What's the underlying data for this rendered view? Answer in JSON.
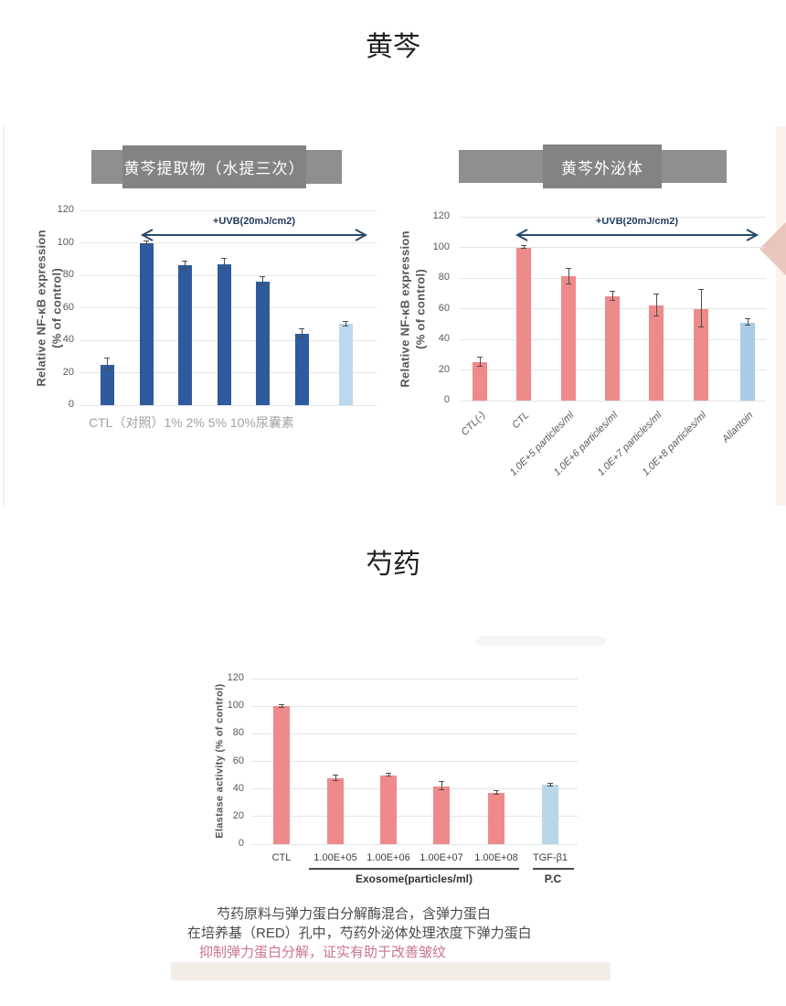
{
  "page": {
    "section1_title": "黄芩",
    "section2_title": "芍药"
  },
  "section1": {
    "left_header": "黄芩提取物（水提三次）",
    "right_header": "黄芩外泌体"
  },
  "section2": {
    "note_line1": "芍药原料与弹力蛋白分解酶混合，含弹力蛋白",
    "note_line2": "在培养基（RED）孔中，芍药外泌体处理浓度下弹力蛋白",
    "note_line3": "抑制弹力蛋白分解，证实有助于改善皱纹"
  },
  "colors": {
    "dark_blue": "#2e5b9e",
    "light_blue": "#bdd7ee",
    "pink": "#ef8a8a",
    "allantoin_blue": "#a9cbe6",
    "tgf_blue": "#b9d6ea",
    "arrow_navy": "#2b4a6d",
    "header_gray": "#838383",
    "note_pink": "#ca7590",
    "edge_strip_pink": "#fbf1ee",
    "edge_diamond": "#e7c6bb"
  },
  "chart_data": [
    {
      "id": "chart-extract",
      "type": "bar",
      "title": "黄芩提取物（水提三次）",
      "ylabel": "Relative NF-κB expression\n(% of control)",
      "ylim": [
        0,
        120
      ],
      "ystep": 20,
      "grid": true,
      "annotation": "+UVB(20mJ/cm2)",
      "caption": "CTL（对照）1% 2% 5% 10%尿囊素",
      "values": [
        25,
        100,
        86,
        87,
        76,
        44,
        50
      ],
      "errors": [
        3.5,
        1,
        2.5,
        3,
        3,
        2.5,
        1.5
      ],
      "bar_colors": [
        "#2e5b9e",
        "#2e5b9e",
        "#2e5b9e",
        "#2e5b9e",
        "#2e5b9e",
        "#2e5b9e",
        "#bdd7ee"
      ]
    },
    {
      "id": "chart-exosome",
      "type": "bar",
      "title": "黄芩外泌体",
      "ylabel": "Relative NF-κB expression\n(% of control)",
      "ylim": [
        0,
        120
      ],
      "ystep": 20,
      "grid": true,
      "annotation": "+UVB(20mJ/cm2)",
      "categories": [
        "CTL(-)",
        "CTL",
        "1.0E+5 particles/ml",
        "1.0E+6 particles/ml",
        "1.0E+7 particles/ml",
        "1.0E+8 particles/ml",
        "Allantoin"
      ],
      "values": [
        25,
        100,
        81,
        68,
        62,
        60,
        51
      ],
      "errors": [
        3,
        1,
        5,
        3,
        7,
        12,
        2
      ],
      "bar_colors": [
        "#ef8a8a",
        "#ef8a8a",
        "#ef8a8a",
        "#ef8a8a",
        "#ef8a8a",
        "#ef8a8a",
        "#a9cbe6"
      ]
    },
    {
      "id": "chart-elastase",
      "type": "bar",
      "ylabel": "Elastase activity (% of control)",
      "ylim": [
        0,
        120
      ],
      "ystep": 20,
      "grid": true,
      "categories": [
        "CTL",
        "1.00E+05",
        "1.00E+06",
        "1.00E+07",
        "1.00E+08",
        "TGF-β1"
      ],
      "values": [
        100,
        48,
        50,
        42,
        37,
        43
      ],
      "errors": [
        1,
        2,
        1,
        3,
        1.5,
        1
      ],
      "bar_colors": [
        "#ef8a8a",
        "#ef8a8a",
        "#ef8a8a",
        "#ef8a8a",
        "#ef8a8a",
        "#b9d6ea"
      ],
      "group_label": "Exosome(particles/ml)",
      "pc_label": "P.C"
    }
  ]
}
